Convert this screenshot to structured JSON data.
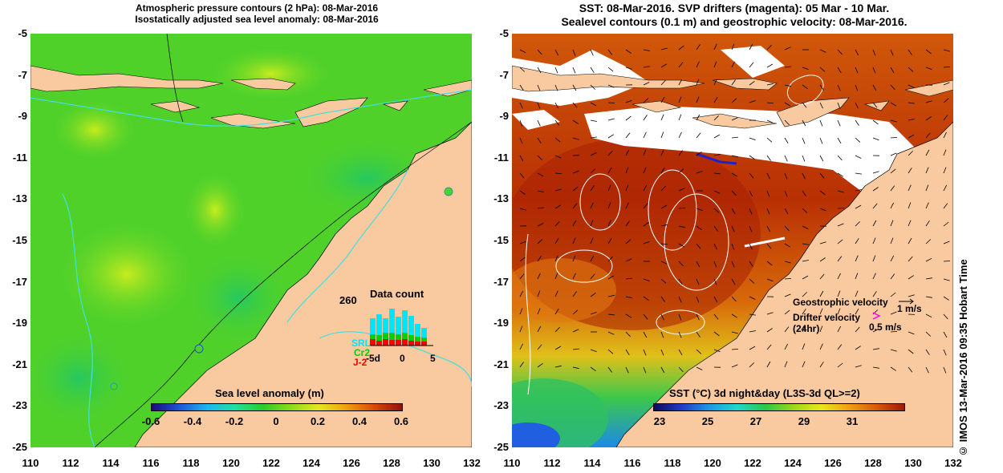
{
  "left_panel": {
    "title_line1": "Atmospheric pressure contours (2 hPa): 08-Mar-2016",
    "title_line2": "Isostatically adjusted sea level anomaly: 08-Mar-2016",
    "colorbar": {
      "label": "Sea level anomaly (m)",
      "ticks": [
        "-0.6",
        "-0.4",
        "-0.2",
        "0",
        "0.2",
        "0.4",
        "0.6"
      ],
      "colors": [
        "#1a0a7a",
        "#1f56d8",
        "#1db6f0",
        "#1fe0a0",
        "#2acc2a",
        "#8adc1a",
        "#e6e620",
        "#f0a010",
        "#d84a08",
        "#901010"
      ]
    },
    "data_count": {
      "title": "Data count",
      "max_label": "260",
      "x_ticks": [
        "-5d",
        "0",
        "5"
      ],
      "series": [
        {
          "name": "SRL",
          "color": "#00e5ff"
        },
        {
          "name": "Cr2",
          "color": "#00d000"
        },
        {
          "name": "J-2",
          "color": "#ff0000"
        }
      ]
    }
  },
  "right_panel": {
    "title_line1": "SST: 08-Mar-2016. SVP drifters (magenta): 05 Mar - 10 Mar.",
    "title_line2": "Sealevel contours (0.1 m) and geostrophic velocity: 08-Mar-2016.",
    "colorbar": {
      "label": "SST (°C) 3d night&day (L3S-3d QL>=2)",
      "ticks": [
        "23",
        "25",
        "27",
        "29",
        "31"
      ],
      "colors": [
        "#10085a",
        "#1f3cc8",
        "#1c9ae8",
        "#1fd8c8",
        "#2ac84a",
        "#9ad818",
        "#e8e81c",
        "#f0a012",
        "#d85a0a",
        "#a01808"
      ]
    },
    "legend": {
      "geostrophic_label": "Geostrophic velocity",
      "geostrophic_scale": "1 m/s",
      "drifter_label_line1": "Drifter velocity",
      "drifter_label_line2": "(24hr)",
      "drifter_scale": "0.5 m/s",
      "drifter_color": "#ff00ff"
    }
  },
  "axes": {
    "x_ticks": [
      "110",
      "112",
      "114",
      "116",
      "118",
      "120",
      "122",
      "124",
      "126",
      "128",
      "130",
      "132"
    ],
    "y_ticks": [
      "-5",
      "-7",
      "-9",
      "-11",
      "-13",
      "-15",
      "-17",
      "-19",
      "-21",
      "-23",
      "-25"
    ]
  },
  "colors": {
    "land": "#f9c9a0",
    "ocean_left": "#4fd12a",
    "ocean_right": "#c23e05",
    "cloud_mask": "#ffffff",
    "contour_cyan": "#40e0e0"
  },
  "stamp": "© IMOS 13-Mar-2016 09:35 Hobart Time"
}
